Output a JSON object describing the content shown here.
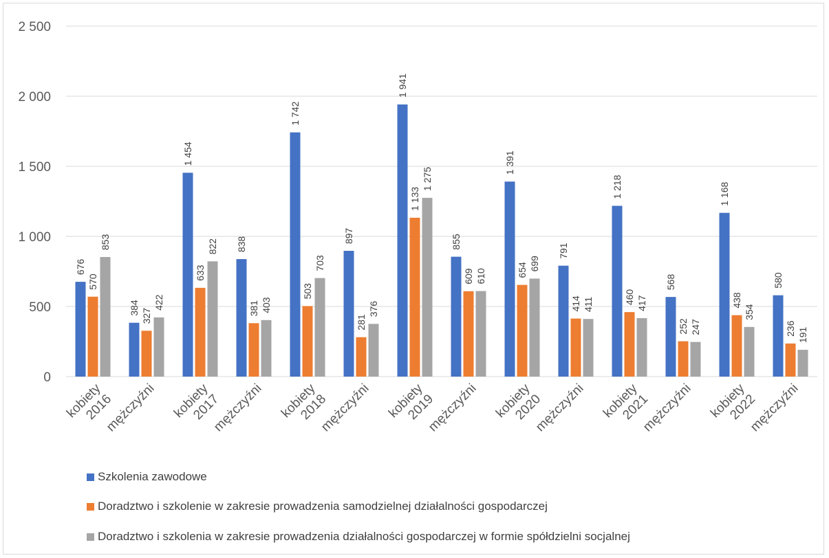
{
  "chart_data": {
    "type": "bar",
    "categories": [
      [
        "kobiety",
        "2016"
      ],
      [
        "mężczyźni",
        ""
      ],
      [
        "kobiety",
        "2017"
      ],
      [
        "mężczyźni",
        ""
      ],
      [
        "kobiety",
        "2018"
      ],
      [
        "mężczyźni",
        ""
      ],
      [
        "kobiety",
        "2019"
      ],
      [
        "mężczyźni",
        ""
      ],
      [
        "kobiety",
        "2020"
      ],
      [
        "mężczyźni",
        ""
      ],
      [
        "kobiety",
        "2021"
      ],
      [
        "mężczyźni",
        ""
      ],
      [
        "kobiety",
        "2022"
      ],
      [
        "mężczyźni",
        ""
      ]
    ],
    "series": [
      {
        "name": "Szkolenia zawodowe",
        "color": "#4472C4",
        "values": [
          676,
          384,
          1454,
          838,
          1742,
          897,
          1941,
          855,
          1391,
          791,
          1218,
          568,
          1168,
          580
        ],
        "labels": [
          "676",
          "384",
          "1 454",
          "838",
          "1 742",
          "897",
          "1 941",
          "855",
          "1 391",
          "791",
          "1 218",
          "568",
          "1 168",
          "580"
        ]
      },
      {
        "name": "Doradztwo i szkolenie w zakresie prowadzenia samodzielnej działalności gospodarczej",
        "color": "#ED7D31",
        "values": [
          570,
          327,
          633,
          381,
          503,
          281,
          1133,
          609,
          654,
          414,
          460,
          252,
          438,
          236
        ],
        "labels": [
          "570",
          "327",
          "633",
          "381",
          "503",
          "281",
          "1 133",
          "609",
          "654",
          "414",
          "460",
          "252",
          "438",
          "236"
        ]
      },
      {
        "name": "Doradztwo i szkolenia w zakresie prowadzenia działalności gospodarczej w formie spółdzielni socjalnej",
        "color": "#A5A5A5",
        "values": [
          853,
          422,
          822,
          403,
          703,
          376,
          1275,
          610,
          699,
          411,
          417,
          247,
          354,
          191
        ],
        "labels": [
          "853",
          "422",
          "822",
          "403",
          "703",
          "376",
          "1 275",
          "610",
          "699",
          "411",
          "417",
          "247",
          "354",
          "191"
        ]
      }
    ],
    "y_ticks": [
      {
        "value": 0,
        "label": "0"
      },
      {
        "value": 500,
        "label": "500"
      },
      {
        "value": 1000,
        "label": "1 000"
      },
      {
        "value": 1500,
        "label": "1 500"
      },
      {
        "value": 2000,
        "label": "2 000"
      },
      {
        "value": 2500,
        "label": "2 500"
      }
    ],
    "ylim": [
      0,
      2500
    ],
    "grid": true,
    "legend_position": "bottom"
  }
}
